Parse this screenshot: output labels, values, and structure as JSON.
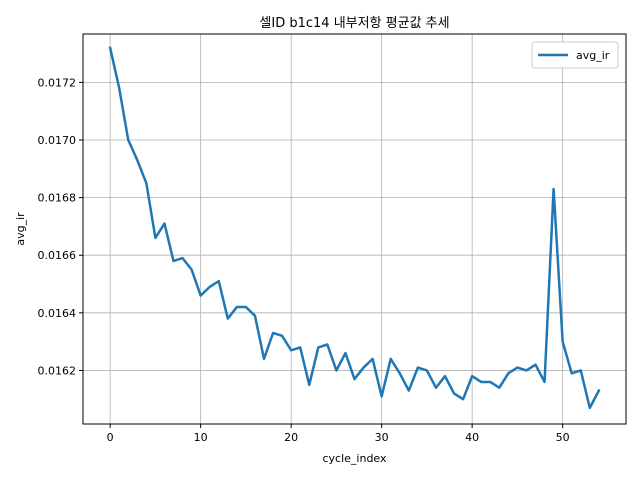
{
  "chart_data": {
    "type": "line",
    "title": "셀ID b1c14 내부저항 평균값 추세",
    "xlabel": "cycle_index",
    "ylabel": "avg_ir",
    "xlim": [
      -3,
      57
    ],
    "ylim": [
      0.016014,
      0.017368
    ],
    "xticks": [
      0,
      10,
      20,
      30,
      40,
      50
    ],
    "yticks": [
      0.0162,
      0.0164,
      0.0166,
      0.0168,
      0.017,
      0.0172
    ],
    "ytick_labels": [
      "0.0162",
      "0.0164",
      "0.0166",
      "0.0168",
      "0.0170",
      "0.0172"
    ],
    "grid": true,
    "legend_position": "top-right",
    "series": [
      {
        "name": "avg_ir",
        "color": "#1f77b4",
        "x": [
          0,
          1,
          2,
          3,
          4,
          5,
          6,
          7,
          8,
          9,
          10,
          11,
          12,
          13,
          14,
          15,
          16,
          17,
          18,
          19,
          20,
          21,
          22,
          23,
          24,
          25,
          26,
          27,
          28,
          29,
          30,
          31,
          32,
          33,
          34,
          35,
          36,
          37,
          38,
          39,
          40,
          41,
          42,
          43,
          44,
          45,
          46,
          47,
          48,
          49,
          50,
          51,
          52,
          53,
          54
        ],
        "y": [
          0.01732,
          0.01718,
          0.017,
          0.01693,
          0.01685,
          0.01666,
          0.01671,
          0.01658,
          0.01659,
          0.01655,
          0.01646,
          0.01649,
          0.01651,
          0.01638,
          0.01642,
          0.01642,
          0.01639,
          0.01624,
          0.01633,
          0.01632,
          0.01627,
          0.01628,
          0.01615,
          0.01628,
          0.01629,
          0.0162,
          0.01626,
          0.01617,
          0.01621,
          0.01624,
          0.01611,
          0.01624,
          0.01619,
          0.01613,
          0.01621,
          0.0162,
          0.01614,
          0.01618,
          0.01612,
          0.0161,
          0.01618,
          0.01616,
          0.01616,
          0.01614,
          0.01619,
          0.01621,
          0.0162,
          0.01622,
          0.01616,
          0.01683,
          0.0163,
          0.01619,
          0.0162,
          0.01607,
          0.01613
        ]
      }
    ]
  }
}
